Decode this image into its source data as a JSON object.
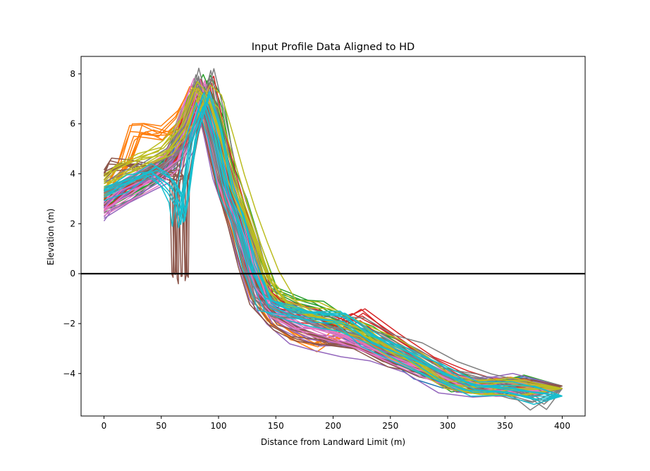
{
  "chart_data": {
    "type": "line",
    "title": "Input Profile Data Aligned to HD",
    "xlabel": "Distance from Landward Limit (m)",
    "ylabel": "Elevation (m)",
    "xlim": [
      -20,
      420
    ],
    "ylim": [
      -5.7,
      8.7
    ],
    "xticks": [
      0,
      50,
      100,
      150,
      200,
      250,
      300,
      350,
      400
    ],
    "yticks": [
      -4,
      -2,
      0,
      2,
      4,
      6,
      8
    ],
    "xtick_labels": [
      "0",
      "50",
      "100",
      "150",
      "200",
      "250",
      "300",
      "350",
      "400"
    ],
    "ytick_labels": [
      "−4",
      "−2",
      "0",
      "2",
      "4",
      "6",
      "8"
    ],
    "grid": false,
    "legend": "none",
    "reference_line": {
      "y": 0,
      "color": "#000000"
    },
    "palette": [
      "#1f77b4",
      "#ff7f0e",
      "#2ca02c",
      "#d62728",
      "#9467bd",
      "#8c564b",
      "#e377c2",
      "#7f7f7f",
      "#bcbd22",
      "#17becf"
    ],
    "series": [
      {
        "color": "#1f77b4",
        "x": [
          0,
          20,
          40,
          60,
          75,
          85,
          95,
          105,
          115,
          125,
          140,
          160,
          180,
          200,
          225,
          250,
          275,
          300,
          325,
          350,
          375,
          400
        ],
        "y": [
          2.9,
          3.4,
          3.9,
          4.6,
          6.2,
          7.2,
          5.5,
          3.6,
          2.3,
          0.6,
          -0.9,
          -1.4,
          -1.7,
          -2.0,
          -2.6,
          -3.3,
          -3.9,
          -4.3,
          -4.5,
          -4.5,
          -4.5,
          -4.6
        ]
      },
      {
        "color": "#ff7f0e",
        "x": [
          0,
          20,
          30,
          40,
          55,
          70,
          82,
          92,
          102,
          112,
          122,
          135,
          150,
          170,
          190,
          210,
          240,
          270,
          300,
          330,
          360,
          400
        ],
        "y": [
          3.1,
          4.3,
          5.6,
          5.7,
          5.5,
          6.2,
          7.3,
          5.8,
          4.0,
          2.4,
          0.8,
          -1.0,
          -2.0,
          -2.6,
          -2.9,
          -2.5,
          -2.8,
          -3.6,
          -4.2,
          -4.5,
          -4.5,
          -4.5
        ]
      },
      {
        "color": "#2ca02c",
        "x": [
          0,
          20,
          40,
          60,
          75,
          88,
          98,
          108,
          118,
          130,
          145,
          165,
          185,
          205,
          230,
          255,
          280,
          305,
          330,
          360,
          400
        ],
        "y": [
          2.7,
          3.2,
          3.8,
          4.5,
          6.6,
          7.6,
          6.6,
          4.0,
          2.6,
          1.0,
          -0.8,
          -1.2,
          -1.5,
          -1.9,
          -2.4,
          -3.1,
          -3.8,
          -4.4,
          -4.6,
          -4.5,
          -4.5
        ]
      },
      {
        "color": "#d62728",
        "x": [
          0,
          20,
          40,
          55,
          65,
          78,
          88,
          98,
          108,
          118,
          128,
          140,
          160,
          180,
          200,
          220,
          250,
          280,
          310,
          340,
          370,
          400
        ],
        "y": [
          2.8,
          3.5,
          4.1,
          4.5,
          5.2,
          6.8,
          7.5,
          5.2,
          3.5,
          2.2,
          0.4,
          -1.0,
          -1.5,
          -1.8,
          -2.2,
          -1.7,
          -2.6,
          -3.5,
          -4.3,
          -4.6,
          -4.6,
          -4.6
        ]
      },
      {
        "color": "#9467bd",
        "x": [
          0,
          15,
          35,
          55,
          70,
          83,
          93,
          103,
          113,
          123,
          135,
          150,
          170,
          190,
          215,
          240,
          270,
          300,
          330,
          360,
          400
        ],
        "y": [
          2.4,
          3.0,
          3.5,
          3.9,
          5.0,
          7.0,
          6.2,
          4.1,
          2.7,
          1.2,
          -0.6,
          -1.8,
          -2.4,
          -2.7,
          -2.9,
          -3.3,
          -3.8,
          -4.4,
          -4.5,
          -4.4,
          -4.5
        ]
      },
      {
        "color": "#8c564b",
        "x": [
          0,
          10,
          25,
          45,
          60,
          64,
          66,
          67,
          68,
          70,
          78,
          86,
          94,
          104,
          114,
          124,
          134,
          150,
          170,
          190,
          220,
          250,
          280,
          310,
          340,
          370,
          400
        ],
        "y": [
          4.0,
          4.5,
          4.4,
          4.1,
          3.9,
          3.8,
          0.0,
          0.0,
          3.8,
          4.2,
          6.1,
          7.1,
          5.6,
          3.6,
          2.2,
          0.4,
          -1.1,
          -1.9,
          -2.4,
          -2.6,
          -2.9,
          -3.4,
          -3.9,
          -4.5,
          -4.6,
          -4.5,
          -4.5
        ]
      },
      {
        "color": "#e377c2",
        "x": [
          0,
          20,
          40,
          60,
          72,
          84,
          94,
          104,
          114,
          124,
          136,
          150,
          170,
          190,
          215,
          245,
          275,
          305,
          335,
          365,
          400
        ],
        "y": [
          2.6,
          3.3,
          3.9,
          4.7,
          6.0,
          7.6,
          5.8,
          3.8,
          2.5,
          0.9,
          -0.9,
          -1.6,
          -2.0,
          -2.3,
          -2.7,
          -3.3,
          -3.8,
          -4.3,
          -4.6,
          -4.6,
          -4.6
        ]
      },
      {
        "color": "#7f7f7f",
        "x": [
          0,
          20,
          40,
          60,
          78,
          88,
          96,
          106,
          116,
          126,
          138,
          155,
          175,
          195,
          220,
          245,
          270,
          300,
          330,
          360,
          380,
          400
        ],
        "y": [
          3.5,
          3.9,
          4.2,
          4.8,
          6.4,
          8.0,
          6.5,
          4.3,
          2.8,
          1.3,
          -0.8,
          -1.4,
          -1.6,
          -1.8,
          -2.1,
          -2.6,
          -3.1,
          -3.8,
          -4.3,
          -4.6,
          -5.0,
          -4.6
        ]
      },
      {
        "color": "#bcbd22",
        "x": [
          0,
          15,
          35,
          55,
          72,
          85,
          95,
          105,
          115,
          125,
          135,
          145,
          160,
          180,
          200,
          225,
          250,
          275,
          300,
          330,
          360,
          400
        ],
        "y": [
          3.7,
          4.1,
          4.6,
          5.0,
          5.9,
          7.4,
          7.0,
          5.4,
          3.7,
          2.4,
          1.2,
          -0.2,
          -1.2,
          -1.5,
          -1.8,
          -2.2,
          -2.9,
          -3.6,
          -4.4,
          -4.6,
          -4.5,
          -4.6
        ]
      },
      {
        "color": "#17becf",
        "x": [
          0,
          20,
          40,
          55,
          62,
          65,
          68,
          75,
          86,
          96,
          106,
          116,
          126,
          140,
          160,
          180,
          205,
          230,
          260,
          290,
          320,
          350,
          375,
          400
        ],
        "y": [
          3.2,
          3.7,
          4.1,
          3.6,
          3.0,
          2.1,
          3.1,
          5.4,
          7.0,
          5.5,
          3.3,
          2.1,
          0.3,
          -1.2,
          -1.6,
          -1.7,
          -1.9,
          -2.6,
          -3.3,
          -4.0,
          -4.6,
          -4.6,
          -4.9,
          -4.9
        ]
      }
    ]
  }
}
